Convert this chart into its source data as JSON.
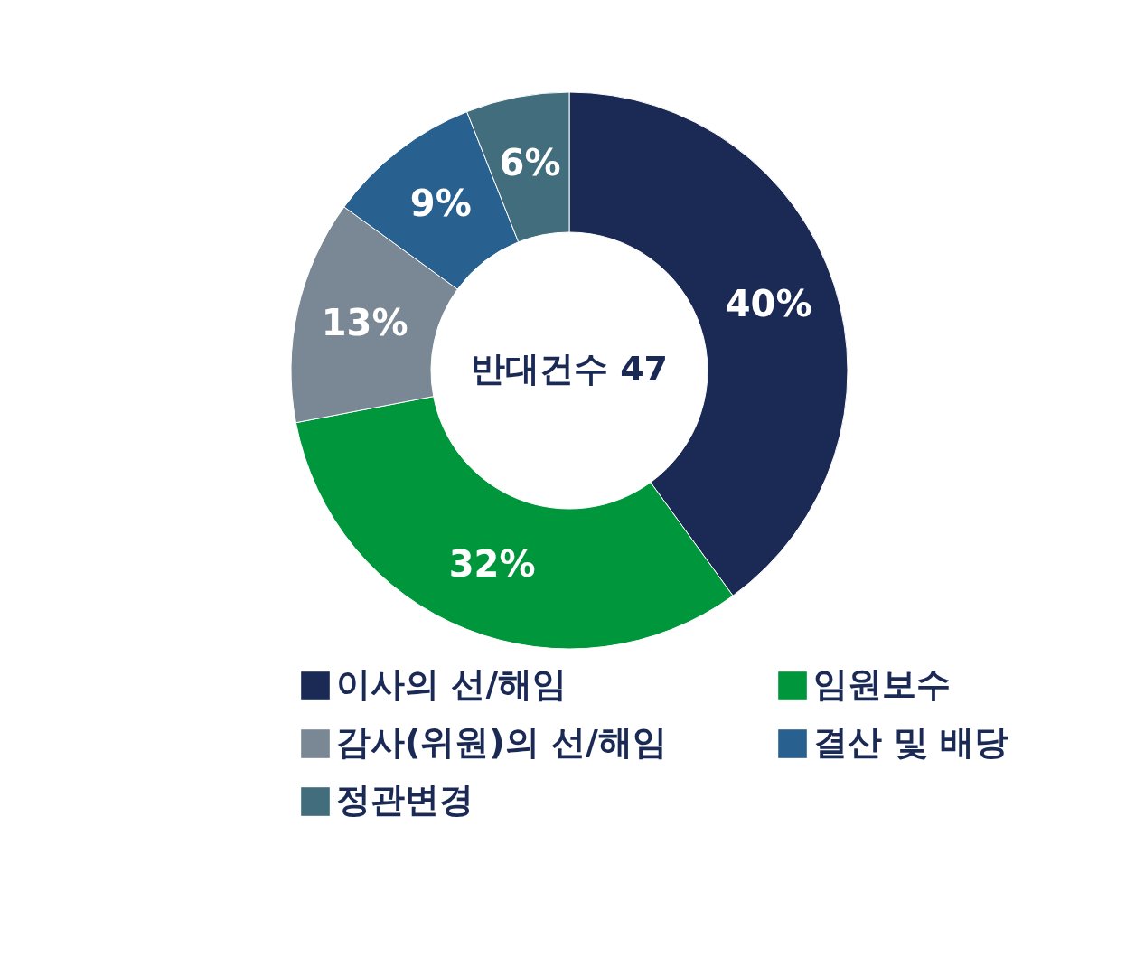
{
  "chart_data": {
    "type": "donut",
    "categories": [
      "이사의 선/해임",
      "임원보수",
      "감사(위원)의 선/해임",
      "결산 및 배당",
      "정관변경"
    ],
    "values": [
      40,
      32,
      13,
      9,
      6
    ],
    "colors": [
      "#1b2a55",
      "#00963c",
      "#7a8794",
      "#28608f",
      "#416d7c"
    ],
    "value_labels": [
      "40%",
      "32%",
      "13%",
      "9%",
      "6%"
    ],
    "annotations": [
      "반대건수 47"
    ],
    "legend": "bottom"
  }
}
